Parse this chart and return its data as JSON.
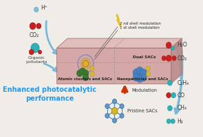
{
  "bg_color": "#f0ede8",
  "platform_face": "#d4a0a0",
  "platform_top": "#e0b8b8",
  "platform_right": "#b88888",
  "platform_edge": "#a07070",
  "dashed_color": "#999999",
  "title_text": "Enhanced photocatalytic\nperformance",
  "title_color": "#2299ee",
  "title_fontsize": 7.0,
  "label_atomic": "Atomic clusters and SACs",
  "label_nano": "Nanoparticles and SACs",
  "label_dual": "Dual SACs",
  "label_modulation": "Modulation",
  "label_pristine": "Pristine SACs",
  "label_2nd": "2 nd shell modulation",
  "label_1st": "1 st shell modulation",
  "label_h2": "H₂",
  "label_ch4": "CH₄",
  "label_co": "CO",
  "label_c2h4": "C₂H₄",
  "label_co2_out": "CO₂",
  "label_h2o": "H₂O",
  "label_hplus": "H⁺",
  "label_co2_in": "CO₂",
  "label_organic": "Organic\npollutants",
  "arrow_blue": "#7ab8d8",
  "arrow_red": "#cc4400",
  "lightning": "#e8c020",
  "green_atom": "#3a7a30",
  "blue_atom": "#4880c0",
  "yellow_atom": "#d4b830",
  "gold_atom": "#d4a020",
  "shell1_color": "#c8a820",
  "shell2_color": "#8888bb",
  "red_mol": "#cc2020",
  "cyan_mol": "#30b0b8",
  "bond_color": "#5088b0"
}
